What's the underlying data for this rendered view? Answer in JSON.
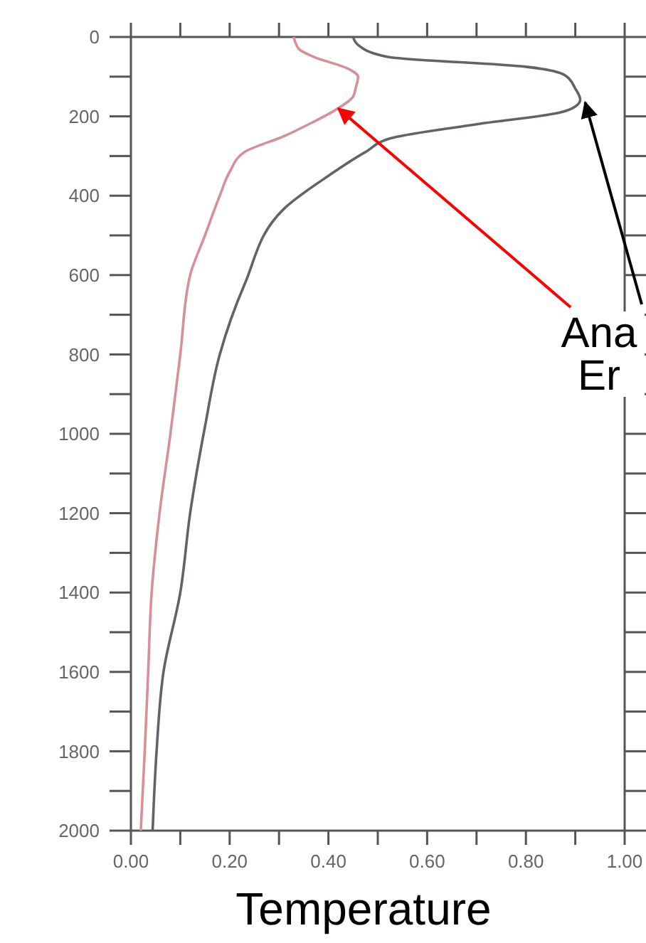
{
  "chart_data": {
    "type": "line",
    "xlabel": "Temperature",
    "xlim": [
      0,
      1
    ],
    "ylim": [
      2000,
      0
    ],
    "xticks": [
      {
        "value": 0,
        "label": "0.00"
      },
      {
        "value": 0.1,
        "label": null
      },
      {
        "value": 0.2,
        "label": "0.20"
      },
      {
        "value": 0.3,
        "label": null
      },
      {
        "value": 0.4,
        "label": "0.40"
      },
      {
        "value": 0.5,
        "label": null
      },
      {
        "value": 0.6,
        "label": "0.60"
      },
      {
        "value": 0.7,
        "label": null
      },
      {
        "value": 0.8,
        "label": "0.80"
      },
      {
        "value": 0.9,
        "label": null
      },
      {
        "value": 1,
        "label": "1.00"
      }
    ],
    "yticks": [
      0,
      {
        "value": 100,
        "label": null
      },
      200,
      {
        "value": 300,
        "label": null
      },
      400,
      {
        "value": 500,
        "label": null
      },
      600,
      {
        "value": 700,
        "label": null
      },
      800,
      {
        "value": 900,
        "label": null
      },
      1000,
      {
        "value": 1100,
        "label": null
      },
      1200,
      {
        "value": 1300,
        "label": null
      },
      1400,
      {
        "value": 1500,
        "label": null
      },
      1600,
      {
        "value": 1700,
        "label": null
      },
      1800,
      {
        "value": 1900,
        "label": null
      },
      2000
    ],
    "grid": false,
    "marker": "none",
    "line_style": "solid",
    "series": [
      {
        "color": "#d89098",
        "x": [
          0.33,
          0.34,
          0.37,
          0.44,
          0.46,
          0.455,
          0.45,
          0.41,
          0.36,
          0.31,
          0.23,
          0.2,
          0.18,
          0.15,
          0.12,
          0.1,
          0.08,
          0.058,
          0.042,
          0.035,
          0.028,
          0.02
        ],
        "values": [
          0,
          30,
          50,
          80,
          100,
          130,
          150,
          187,
          220,
          250,
          290,
          340,
          400,
          500,
          600,
          800,
          1000,
          1200,
          1400,
          1600,
          1800,
          2000
        ]
      },
      {
        "color": "#606468",
        "x": [
          0.45,
          0.46,
          0.52,
          0.8,
          0.88,
          0.9,
          0.91,
          0.9,
          0.87,
          0.7,
          0.53,
          0.475,
          0.4,
          0.31,
          0.23,
          0.18,
          0.15,
          0.12,
          0.1,
          0.066,
          0.052,
          0.044
        ],
        "values": [
          0,
          20,
          50,
          75,
          97,
          130,
          158,
          175,
          190,
          220,
          254,
          290,
          350,
          433,
          624,
          800,
          982,
          1200,
          1400,
          1600,
          1800,
          2000
        ]
      }
    ],
    "annotations": [
      {
        "text": "Ana",
        "x": 0.42,
        "y": 180
      },
      {
        "text": "Er",
        "x": 0.92,
        "y": 165
      }
    ]
  }
}
